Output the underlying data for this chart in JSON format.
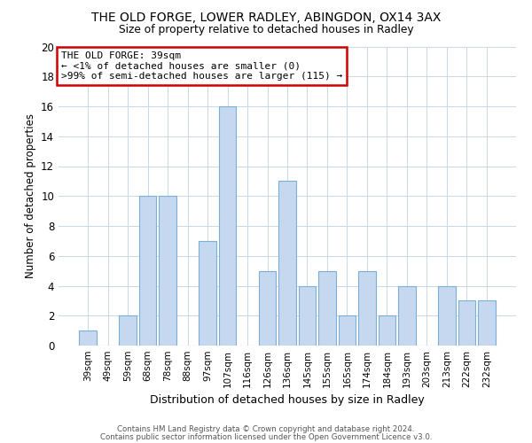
{
  "title1": "THE OLD FORGE, LOWER RADLEY, ABINGDON, OX14 3AX",
  "title2": "Size of property relative to detached houses in Radley",
  "xlabel": "Distribution of detached houses by size in Radley",
  "ylabel": "Number of detached properties",
  "bin_labels": [
    "39sqm",
    "49sqm",
    "59sqm",
    "68sqm",
    "78sqm",
    "88sqm",
    "97sqm",
    "107sqm",
    "116sqm",
    "126sqm",
    "136sqm",
    "145sqm",
    "155sqm",
    "165sqm",
    "174sqm",
    "184sqm",
    "193sqm",
    "203sqm",
    "213sqm",
    "222sqm",
    "232sqm"
  ],
  "bar_heights": [
    1,
    0,
    2,
    10,
    10,
    0,
    7,
    16,
    0,
    5,
    11,
    4,
    5,
    2,
    5,
    2,
    4,
    0,
    4,
    3,
    3
  ],
  "bar_color": "#c5d8f0",
  "bar_edge_color": "#7bafd4",
  "ylim": [
    0,
    20
  ],
  "yticks": [
    0,
    2,
    4,
    6,
    8,
    10,
    12,
    14,
    16,
    18,
    20
  ],
  "annotation_title": "THE OLD FORGE: 39sqm",
  "annotation_line1": "← <1% of detached houses are smaller (0)",
  "annotation_line2": ">99% of semi-detached houses are larger (115) →",
  "annotation_box_edge": "#cc0000",
  "footer1": "Contains HM Land Registry data © Crown copyright and database right 2024.",
  "footer2": "Contains public sector information licensed under the Open Government Licence v3.0."
}
